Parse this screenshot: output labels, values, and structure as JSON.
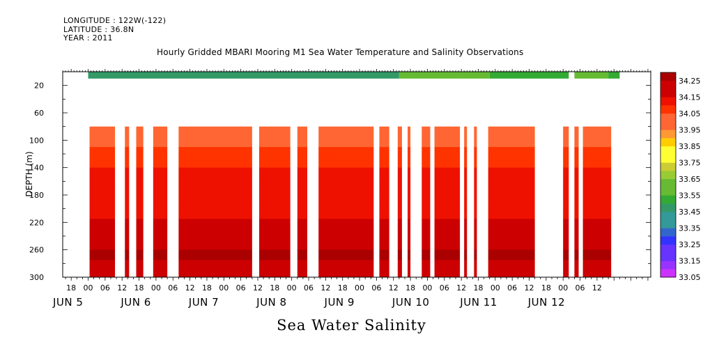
{
  "header": {
    "longitude": "LONGITUDE : 122W(-122)",
    "latitude": "LATITUDE : 36.8N",
    "year": "YEAR : 2011",
    "title": "Hourly Gridded MBARI Mooring M1 Sea Water Temperature and Salinity Observations"
  },
  "footer": {
    "variable": "Sea Water Salinity"
  },
  "colors": {
    "scale": [
      "#cc33ff",
      "#9933ff",
      "#6633ff",
      "#3333ff",
      "#3366cc",
      "#339999",
      "#339966",
      "#33aa33",
      "#66bb33",
      "#99cc33",
      "#cccc33",
      "#ffff33",
      "#ffcc00",
      "#ff9933",
      "#ff6633",
      "#ff3300",
      "#ee1100",
      "#cc0000",
      "#aa0000"
    ]
  },
  "chart_data": {
    "type": "heatmap",
    "ylabel": "DEPTH (m)",
    "xlabel": "",
    "ylim": [
      300,
      0
    ],
    "x_range_hours": [
      -9,
      199
    ],
    "yticks": [
      20,
      60,
      100,
      140,
      180,
      220,
      260,
      300
    ],
    "hour_labels": [
      {
        "h": -6,
        "label": "18"
      },
      {
        "h": 0,
        "label": "00"
      },
      {
        "h": 6,
        "label": "06"
      },
      {
        "h": 12,
        "label": "12"
      },
      {
        "h": 18,
        "label": "18"
      },
      {
        "h": 24,
        "label": "00"
      },
      {
        "h": 30,
        "label": "06"
      },
      {
        "h": 36,
        "label": "12"
      },
      {
        "h": 42,
        "label": "18"
      },
      {
        "h": 48,
        "label": "00"
      },
      {
        "h": 54,
        "label": "06"
      },
      {
        "h": 60,
        "label": "12"
      },
      {
        "h": 66,
        "label": "18"
      },
      {
        "h": 72,
        "label": "00"
      },
      {
        "h": 78,
        "label": "06"
      },
      {
        "h": 84,
        "label": "12"
      },
      {
        "h": 90,
        "label": "18"
      },
      {
        "h": 96,
        "label": "00"
      },
      {
        "h": 102,
        "label": "06"
      },
      {
        "h": 108,
        "label": "12"
      },
      {
        "h": 114,
        "label": "18"
      },
      {
        "h": 120,
        "label": "00"
      },
      {
        "h": 126,
        "label": "06"
      },
      {
        "h": 132,
        "label": "12"
      },
      {
        "h": 138,
        "label": "18"
      },
      {
        "h": 144,
        "label": "00"
      },
      {
        "h": 150,
        "label": "06"
      },
      {
        "h": 156,
        "label": "12"
      },
      {
        "h": 162,
        "label": "18"
      },
      {
        "h": 168,
        "label": "00"
      },
      {
        "h": 174,
        "label": "06"
      },
      {
        "h": 180,
        "label": "12"
      }
    ],
    "day_labels": [
      {
        "h": -9,
        "label": "JUN  5"
      },
      {
        "h": 15,
        "label": "JUN  6"
      },
      {
        "h": 39,
        "label": "JUN  7"
      },
      {
        "h": 63,
        "label": "JUN  8"
      },
      {
        "h": 87,
        "label": "JUN  9"
      },
      {
        "h": 111,
        "label": "JUN 10"
      },
      {
        "h": 135,
        "label": "JUN 11"
      },
      {
        "h": 159,
        "label": "JUN 12"
      }
    ],
    "colorbar": {
      "levels": [
        33.05,
        33.1,
        33.15,
        33.2,
        33.25,
        33.3,
        33.35,
        33.4,
        33.45,
        33.5,
        33.55,
        33.6,
        33.65,
        33.7,
        33.75,
        33.8,
        33.85,
        33.9,
        33.95,
        34.0,
        34.05,
        34.1,
        34.15,
        34.2,
        34.25,
        34.3
      ],
      "labels": [
        "33.05",
        "33.15",
        "33.25",
        "33.35",
        "33.45",
        "33.55",
        "33.65",
        "33.75",
        "33.85",
        "33.95",
        "34.05",
        "34.15",
        "34.25"
      ],
      "label_values": [
        33.05,
        33.15,
        33.25,
        33.35,
        33.45,
        33.55,
        33.65,
        33.75,
        33.85,
        33.95,
        34.05,
        34.15,
        34.25
      ]
    },
    "surface_layer": {
      "depth_range": [
        0,
        10
      ],
      "value": 33.45,
      "segments": [
        {
          "start": 0,
          "end": 110,
          "value": 33.45
        },
        {
          "start": 110,
          "end": 142,
          "value": 33.55
        },
        {
          "start": 142,
          "end": 170,
          "value": 33.5
        },
        {
          "start": 172,
          "end": 184,
          "value": 33.55
        },
        {
          "start": 184,
          "end": 188,
          "value": 33.5
        }
      ]
    },
    "profile": {
      "depths": [
        80,
        95,
        110,
        125,
        140,
        155,
        170,
        185,
        200,
        215,
        230,
        245,
        260,
        275,
        290,
        300
      ],
      "salinity": [
        34.0,
        34.02,
        34.05,
        34.08,
        34.1,
        34.14,
        34.12,
        34.1,
        34.12,
        34.16,
        34.2,
        34.24,
        34.25,
        34.22,
        34.18,
        34.16
      ]
    },
    "data_columns": [
      {
        "start": 0.5,
        "end": 9.5
      },
      {
        "start": 13,
        "end": 14.5
      },
      {
        "start": 17,
        "end": 19.5
      },
      {
        "start": 23,
        "end": 28
      },
      {
        "start": 32,
        "end": 58
      },
      {
        "start": 60.5,
        "end": 71.5
      },
      {
        "start": 74,
        "end": 77.5
      },
      {
        "start": 81.5,
        "end": 101
      },
      {
        "start": 103,
        "end": 106.5
      },
      {
        "start": 109.5,
        "end": 111
      },
      {
        "start": 113,
        "end": 114
      },
      {
        "start": 118,
        "end": 121
      },
      {
        "start": 122.5,
        "end": 131.5
      },
      {
        "start": 133,
        "end": 134
      },
      {
        "start": 136.5,
        "end": 137.5
      },
      {
        "start": 141.5,
        "end": 158
      },
      {
        "start": 168,
        "end": 170
      },
      {
        "start": 172,
        "end": 173.5
      },
      {
        "start": 175,
        "end": 185
      }
    ]
  }
}
